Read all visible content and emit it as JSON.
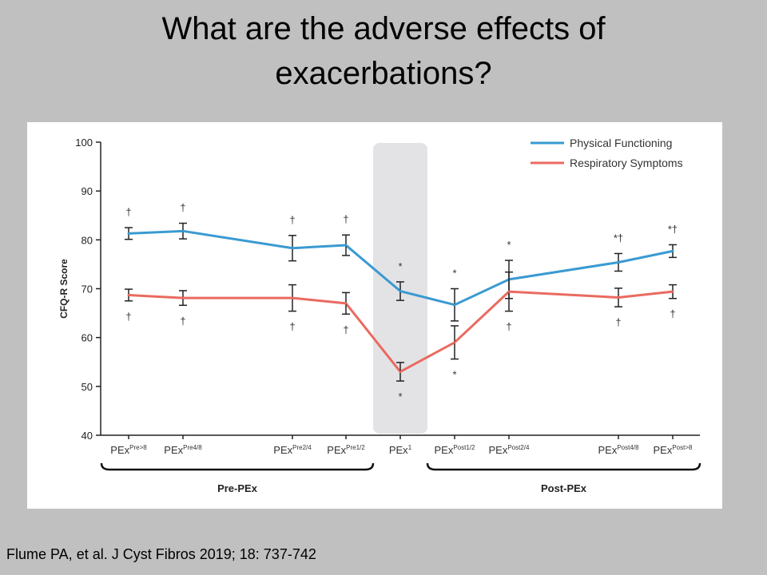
{
  "slide": {
    "title_line1": "What are the adverse effects of",
    "title_line2": "exacerbations?",
    "citation": "Flume PA, et al. J Cyst Fibros 2019; 18: 737-742"
  },
  "chart_data": {
    "type": "line",
    "title": "",
    "xlabel": "",
    "ylabel": "CFQ-R Score",
    "ylim": [
      40,
      100
    ],
    "yticks": [
      40,
      50,
      60,
      70,
      80,
      90,
      100
    ],
    "grid": false,
    "legend_position": "top-right",
    "categories": [
      {
        "base": "PEx",
        "sup": "Pre>8"
      },
      {
        "base": "PEx",
        "sup": "Pre4/8"
      },
      {
        "base": "PEx",
        "sup": "Pre2/4"
      },
      {
        "base": "PEx",
        "sup": "Pre1/2"
      },
      {
        "base": "PEx",
        "sup": "1"
      },
      {
        "base": "PEx",
        "sup": "Post1/2"
      },
      {
        "base": "PEx",
        "sup": "Post2/4"
      },
      {
        "base": "PEx",
        "sup": "Post4/8"
      },
      {
        "base": "PEx",
        "sup": "Post>8"
      }
    ],
    "highlight_category_index": 4,
    "groups": [
      {
        "label": "Pre-PEx",
        "from": 0,
        "to": 3
      },
      {
        "label": "Post-PEx",
        "from": 5,
        "to": 8
      }
    ],
    "series": [
      {
        "name": "Physical Functioning",
        "color": "#3a9ad1",
        "values": [
          81.3,
          81.8,
          78.3,
          78.9,
          69.5,
          66.7,
          71.9,
          75.4,
          77.7
        ],
        "error": [
          1.2,
          1.6,
          2.6,
          2.1,
          1.9,
          3.3,
          3.9,
          1.8,
          1.3
        ],
        "above_markers": [
          "†",
          "†",
          "†",
          "†",
          "*",
          "*",
          "*",
          "*†",
          "*†"
        ]
      },
      {
        "name": "Respiratory Symptoms",
        "color": "#ea6a60",
        "values": [
          68.7,
          68.1,
          68.1,
          67.0,
          53.0,
          59.0,
          69.4,
          68.2,
          69.4
        ],
        "error": [
          1.2,
          1.5,
          2.7,
          2.2,
          1.9,
          3.4,
          4.0,
          1.9,
          1.4
        ],
        "below_markers": [
          "†",
          "†",
          "†",
          "†",
          "*",
          "*",
          "†",
          "†",
          "†"
        ]
      }
    ]
  }
}
